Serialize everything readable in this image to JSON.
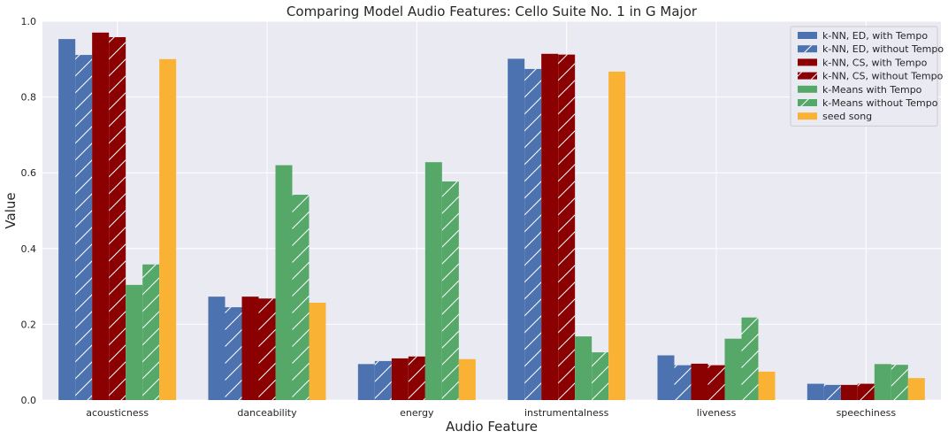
{
  "chart_data": {
    "type": "bar",
    "title": "Comparing Model Audio Features: Cello Suite No. 1 in G Major",
    "xlabel": "Audio Feature",
    "ylabel": "Value",
    "ylim": [
      0,
      1.0
    ],
    "yticks": [
      "0.0",
      "0.2",
      "0.4",
      "0.6",
      "0.8",
      "1.0"
    ],
    "grid": true,
    "legend_position": "top-right",
    "categories": [
      "acousticness",
      "danceability",
      "energy",
      "instrumentalness",
      "liveness",
      "speechiness"
    ],
    "series": [
      {
        "name": "k-NN, ED, with Tempo",
        "color": "#4c72b0",
        "hatch": false,
        "values": [
          0.953,
          0.273,
          0.095,
          0.901,
          0.118,
          0.043
        ]
      },
      {
        "name": "k-NN, ED, without Tempo",
        "color": "#4c72b0",
        "hatch": true,
        "values": [
          0.911,
          0.245,
          0.103,
          0.874,
          0.092,
          0.04
        ]
      },
      {
        "name": "k-NN, CS, with Tempo",
        "color": "#8b0000",
        "hatch": false,
        "values": [
          0.97,
          0.273,
          0.11,
          0.914,
          0.096,
          0.04
        ]
      },
      {
        "name": "k-NN, CS, without Tempo",
        "color": "#8b0000",
        "hatch": true,
        "values": [
          0.958,
          0.268,
          0.115,
          0.912,
          0.092,
          0.043
        ]
      },
      {
        "name": "k-Means with Tempo",
        "color": "#55a868",
        "hatch": false,
        "values": [
          0.304,
          0.62,
          0.628,
          0.168,
          0.162,
          0.095
        ]
      },
      {
        "name": "k-Means without Tempo",
        "color": "#55a868",
        "hatch": true,
        "values": [
          0.358,
          0.542,
          0.577,
          0.126,
          0.218,
          0.093
        ]
      },
      {
        "name": "seed song",
        "color": "#f9b233",
        "hatch": false,
        "values": [
          0.9,
          0.257,
          0.108,
          0.867,
          0.075,
          0.058
        ]
      }
    ],
    "colors": {
      "plot_background": "#eaeaf2",
      "grid": "#ffffff",
      "hatch": "#ffffff"
    }
  }
}
